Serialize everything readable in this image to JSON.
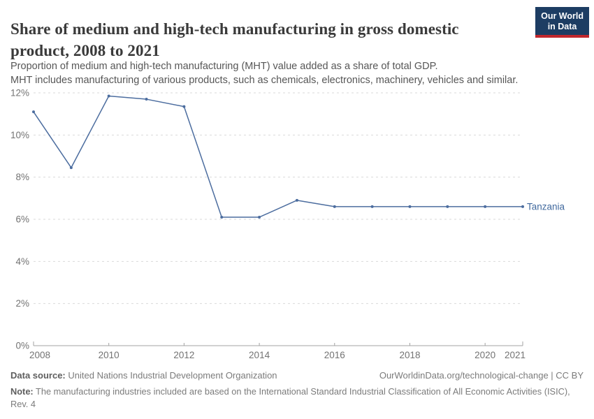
{
  "header": {
    "title": "Share of medium and high-tech manufacturing in gross domestic product, 2008 to 2021",
    "logo": {
      "line1": "Our World",
      "line2": "in Data"
    }
  },
  "subtitle": {
    "line1": "Proportion of medium and high-tech manufacturing (MHT) value added as a share of total GDP.",
    "line2": "MHT includes manufacturing of various products, such as chemicals, electronics, machinery, vehicles and similar."
  },
  "chart_data": {
    "type": "line",
    "title": "Share of medium and high-tech manufacturing in gross domestic product, 2008 to 2021",
    "x": [
      2008,
      2009,
      2010,
      2011,
      2012,
      2013,
      2014,
      2015,
      2016,
      2017,
      2018,
      2019,
      2020,
      2021
    ],
    "series": [
      {
        "name": "Tanzania",
        "values": [
          11.1,
          8.45,
          11.85,
          11.7,
          11.35,
          6.1,
          6.1,
          6.9,
          6.6,
          6.6,
          6.6,
          6.6,
          6.6,
          6.6
        ]
      }
    ],
    "ylabel": "",
    "xlabel": "",
    "ylim": [
      0,
      12
    ],
    "yticks": [
      0,
      2,
      4,
      6,
      8,
      10,
      12
    ],
    "ytick_labels": [
      "0%",
      "2%",
      "4%",
      "6%",
      "8%",
      "10%",
      "12%"
    ],
    "xticks": [
      2008,
      2010,
      2012,
      2014,
      2016,
      2018,
      2020,
      2021
    ],
    "grid": true,
    "grid_style": "dashed",
    "legend_position": "end-of-line",
    "line_color": "#4c6d9f",
    "point_color": "#4c6d9f",
    "label_color": "#41699e",
    "axis_color": "#a3a3a3",
    "grid_color": "#d9d9d9",
    "tick_label_color": "#737373"
  },
  "footer": {
    "datasource_label": "Data source:",
    "datasource_value": "United Nations Industrial Development Organization",
    "link": "OurWorldinData.org/technological-change | CC BY",
    "note_label": "Note:",
    "note_value": "The manufacturing industries included are based on the International Standard Industrial Classification of All Economic Activities (ISIC), Rev. 4"
  },
  "colors": {
    "logo_bg": "#1d3d63",
    "logo_red": "#c1272d",
    "accent": "#4c6d9f"
  }
}
